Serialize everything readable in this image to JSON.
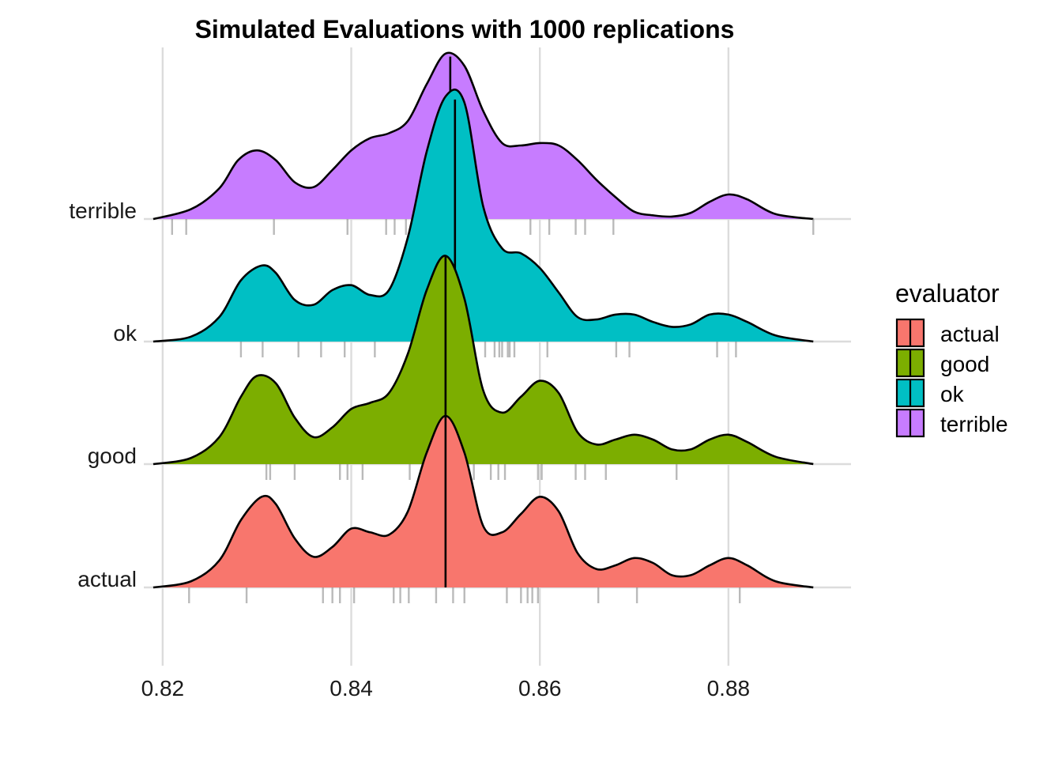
{
  "chart_data": {
    "type": "area",
    "subtype": "ridgeline-density",
    "title": "Simulated Evaluations with 1000 replications",
    "xlabel": "",
    "ylabel": "",
    "xlim": [
      0.818,
      0.893
    ],
    "x_ticks": [
      0.82,
      0.84,
      0.86,
      0.88
    ],
    "x_tick_labels": [
      "0.82",
      "0.84",
      "0.86",
      "0.88"
    ],
    "categories": [
      "actual",
      "good",
      "ok",
      "terrible"
    ],
    "grid": true,
    "legend": {
      "title": "evaluator",
      "position": "right",
      "entries": [
        "actual",
        "good",
        "ok",
        "terrible"
      ]
    },
    "series": [
      {
        "name": "actual",
        "color": "#F8766D",
        "median": 0.85,
        "rug": [
          0.8228,
          0.8289,
          0.837,
          0.838,
          0.8388,
          0.8403,
          0.8445,
          0.8452,
          0.8461,
          0.849,
          0.8508,
          0.852,
          0.8565,
          0.858,
          0.8587,
          0.8592,
          0.8598,
          0.8662,
          0.8703,
          0.8812
        ],
        "density": [
          [
            0.819,
            0.0
          ],
          [
            0.823,
            0.05
          ],
          [
            0.826,
            0.22
          ],
          [
            0.8283,
            0.55
          ],
          [
            0.8305,
            0.74
          ],
          [
            0.832,
            0.68
          ],
          [
            0.834,
            0.4
          ],
          [
            0.836,
            0.25
          ],
          [
            0.838,
            0.33
          ],
          [
            0.84,
            0.48
          ],
          [
            0.842,
            0.45
          ],
          [
            0.844,
            0.43
          ],
          [
            0.846,
            0.62
          ],
          [
            0.848,
            1.1
          ],
          [
            0.85,
            1.4
          ],
          [
            0.852,
            1.1
          ],
          [
            0.854,
            0.5
          ],
          [
            0.856,
            0.45
          ],
          [
            0.858,
            0.6
          ],
          [
            0.86,
            0.74
          ],
          [
            0.862,
            0.62
          ],
          [
            0.864,
            0.28
          ],
          [
            0.866,
            0.15
          ],
          [
            0.868,
            0.18
          ],
          [
            0.87,
            0.24
          ],
          [
            0.872,
            0.2
          ],
          [
            0.874,
            0.1
          ],
          [
            0.876,
            0.1
          ],
          [
            0.878,
            0.18
          ],
          [
            0.88,
            0.24
          ],
          [
            0.882,
            0.18
          ],
          [
            0.885,
            0.05
          ],
          [
            0.889,
            0.0
          ]
        ]
      },
      {
        "name": "good",
        "color": "#7CAE00",
        "median": 0.85,
        "rug": [
          0.831,
          0.8314,
          0.834,
          0.8388,
          0.8396,
          0.8412,
          0.8462,
          0.8512,
          0.852,
          0.853,
          0.8548,
          0.8556,
          0.8563,
          0.8598,
          0.8602,
          0.8638,
          0.8648,
          0.867,
          0.8745
        ],
        "density": [
          [
            0.819,
            0.0
          ],
          [
            0.823,
            0.05
          ],
          [
            0.826,
            0.22
          ],
          [
            0.8283,
            0.55
          ],
          [
            0.83,
            0.72
          ],
          [
            0.832,
            0.66
          ],
          [
            0.834,
            0.38
          ],
          [
            0.836,
            0.22
          ],
          [
            0.838,
            0.3
          ],
          [
            0.84,
            0.45
          ],
          [
            0.842,
            0.5
          ],
          [
            0.844,
            0.58
          ],
          [
            0.846,
            0.9
          ],
          [
            0.848,
            1.42
          ],
          [
            0.85,
            1.7
          ],
          [
            0.852,
            1.35
          ],
          [
            0.854,
            0.6
          ],
          [
            0.856,
            0.42
          ],
          [
            0.858,
            0.55
          ],
          [
            0.86,
            0.68
          ],
          [
            0.862,
            0.58
          ],
          [
            0.864,
            0.26
          ],
          [
            0.866,
            0.16
          ],
          [
            0.868,
            0.2
          ],
          [
            0.87,
            0.24
          ],
          [
            0.872,
            0.2
          ],
          [
            0.874,
            0.12
          ],
          [
            0.876,
            0.12
          ],
          [
            0.878,
            0.2
          ],
          [
            0.88,
            0.24
          ],
          [
            0.882,
            0.18
          ],
          [
            0.885,
            0.06
          ],
          [
            0.889,
            0.0
          ]
        ]
      },
      {
        "name": "ok",
        "color": "#00BFC4",
        "median": 0.851,
        "rug": [
          0.8283,
          0.8306,
          0.8344,
          0.8368,
          0.8393,
          0.8425,
          0.8542,
          0.8552,
          0.8557,
          0.856,
          0.8566,
          0.8568,
          0.8573,
          0.8608,
          0.8681,
          0.8695,
          0.8788,
          0.8808
        ],
        "density": [
          [
            0.819,
            0.0
          ],
          [
            0.823,
            0.04
          ],
          [
            0.826,
            0.2
          ],
          [
            0.8283,
            0.5
          ],
          [
            0.8305,
            0.62
          ],
          [
            0.832,
            0.56
          ],
          [
            0.834,
            0.34
          ],
          [
            0.836,
            0.3
          ],
          [
            0.838,
            0.42
          ],
          [
            0.84,
            0.46
          ],
          [
            0.842,
            0.38
          ],
          [
            0.844,
            0.42
          ],
          [
            0.846,
            0.85
          ],
          [
            0.848,
            1.55
          ],
          [
            0.85,
            2.0
          ],
          [
            0.852,
            1.95
          ],
          [
            0.854,
            1.1
          ],
          [
            0.856,
            0.76
          ],
          [
            0.858,
            0.72
          ],
          [
            0.86,
            0.6
          ],
          [
            0.862,
            0.4
          ],
          [
            0.864,
            0.2
          ],
          [
            0.866,
            0.18
          ],
          [
            0.868,
            0.22
          ],
          [
            0.87,
            0.22
          ],
          [
            0.872,
            0.16
          ],
          [
            0.874,
            0.12
          ],
          [
            0.876,
            0.14
          ],
          [
            0.878,
            0.22
          ],
          [
            0.88,
            0.22
          ],
          [
            0.882,
            0.16
          ],
          [
            0.885,
            0.05
          ],
          [
            0.889,
            0.0
          ]
        ]
      },
      {
        "name": "terrible",
        "color": "#C77CFF",
        "median": 0.8505,
        "rug": [
          0.821,
          0.8225,
          0.8318,
          0.8396,
          0.8437,
          0.8446,
          0.8458,
          0.859,
          0.861,
          0.8638,
          0.8648,
          0.8678,
          0.889
        ],
        "density": [
          [
            0.819,
            0.0
          ],
          [
            0.823,
            0.08
          ],
          [
            0.826,
            0.25
          ],
          [
            0.828,
            0.48
          ],
          [
            0.83,
            0.56
          ],
          [
            0.832,
            0.48
          ],
          [
            0.834,
            0.3
          ],
          [
            0.836,
            0.26
          ],
          [
            0.838,
            0.4
          ],
          [
            0.84,
            0.56
          ],
          [
            0.842,
            0.66
          ],
          [
            0.844,
            0.7
          ],
          [
            0.846,
            0.8
          ],
          [
            0.848,
            1.1
          ],
          [
            0.85,
            1.35
          ],
          [
            0.852,
            1.25
          ],
          [
            0.854,
            0.88
          ],
          [
            0.856,
            0.62
          ],
          [
            0.858,
            0.6
          ],
          [
            0.86,
            0.62
          ],
          [
            0.862,
            0.6
          ],
          [
            0.864,
            0.48
          ],
          [
            0.866,
            0.32
          ],
          [
            0.868,
            0.18
          ],
          [
            0.87,
            0.06
          ],
          [
            0.872,
            0.03
          ],
          [
            0.874,
            0.02
          ],
          [
            0.876,
            0.05
          ],
          [
            0.878,
            0.14
          ],
          [
            0.88,
            0.2
          ],
          [
            0.882,
            0.16
          ],
          [
            0.885,
            0.04
          ],
          [
            0.889,
            0.0
          ]
        ]
      }
    ]
  }
}
